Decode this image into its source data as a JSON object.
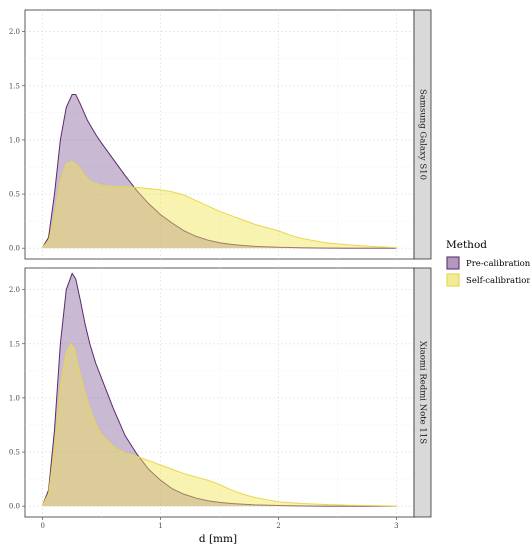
{
  "chart_data": {
    "type": "area",
    "xlabel": "d [mm]",
    "xlim": [
      -0.15,
      3.15
    ],
    "ylim": [
      -0.1,
      2.2
    ],
    "x_ticks": [
      0,
      1,
      2,
      3
    ],
    "y_ticks": [
      0.0,
      0.5,
      1.0,
      1.5,
      2.0
    ],
    "x_tick_labels": [
      "0",
      "1",
      "2",
      "3"
    ],
    "y_tick_labels": [
      "0.0",
      "0.5",
      "1.0",
      "1.5",
      "2.0"
    ],
    "grid": true,
    "legend": {
      "title": "Method",
      "placement": "right",
      "entries": [
        "Pre-calibration",
        "Self-calibration"
      ]
    },
    "series_styles": [
      {
        "name": "Pre-calibration",
        "fill": "#7b4f8f",
        "fill_opacity": 0.4,
        "stroke": "#5b2a6e"
      },
      {
        "name": "Self-calibration",
        "fill": "#f1e455",
        "fill_opacity": 0.45,
        "stroke": "#e8d84a"
      }
    ],
    "strip_color": "#d9d9d9",
    "panels": [
      {
        "label": "Samsung Galaxy S10",
        "series": [
          {
            "name": "Pre-calibration",
            "x": [
              0,
              0.05,
              0.1,
              0.15,
              0.2,
              0.25,
              0.28,
              0.32,
              0.38,
              0.45,
              0.5,
              0.6,
              0.7,
              0.8,
              0.9,
              1.0,
              1.1,
              1.2,
              1.3,
              1.4,
              1.5,
              1.6,
              1.7,
              1.8,
              2.0,
              2.2,
              2.4,
              2.6,
              2.8,
              3.0
            ],
            "values": [
              0.01,
              0.1,
              0.5,
              1.0,
              1.3,
              1.42,
              1.42,
              1.33,
              1.18,
              1.05,
              0.97,
              0.82,
              0.67,
              0.53,
              0.41,
              0.31,
              0.23,
              0.16,
              0.11,
              0.075,
              0.05,
              0.035,
              0.025,
              0.017,
              0.008,
              0.004,
              0.002,
              0.001,
              0.0005,
              0.0002
            ]
          },
          {
            "name": "Self-calibration",
            "x": [
              0,
              0.05,
              0.1,
              0.15,
              0.2,
              0.25,
              0.3,
              0.35,
              0.4,
              0.5,
              0.6,
              0.7,
              0.8,
              0.9,
              1.0,
              1.1,
              1.2,
              1.3,
              1.4,
              1.5,
              1.6,
              1.7,
              1.8,
              1.9,
              2.0,
              2.1,
              2.2,
              2.3,
              2.4,
              2.5,
              2.6,
              2.8,
              3.0
            ],
            "values": [
              0.01,
              0.07,
              0.3,
              0.62,
              0.78,
              0.8,
              0.76,
              0.68,
              0.62,
              0.58,
              0.57,
              0.565,
              0.56,
              0.55,
              0.54,
              0.52,
              0.49,
              0.44,
              0.39,
              0.34,
              0.3,
              0.26,
              0.22,
              0.19,
              0.16,
              0.12,
              0.09,
              0.07,
              0.05,
              0.04,
              0.03,
              0.015,
              0.005
            ]
          }
        ]
      },
      {
        "label": "Xiaomi Redmi Note 11S",
        "series": [
          {
            "name": "Pre-calibration",
            "x": [
              0,
              0.05,
              0.1,
              0.15,
              0.2,
              0.25,
              0.28,
              0.32,
              0.36,
              0.4,
              0.45,
              0.5,
              0.55,
              0.6,
              0.7,
              0.8,
              0.9,
              1.0,
              1.1,
              1.2,
              1.3,
              1.4,
              1.5,
              1.6,
              1.8,
              2.0,
              2.2,
              2.4,
              2.6,
              3.0
            ],
            "values": [
              0.01,
              0.15,
              0.7,
              1.5,
              2.0,
              2.15,
              2.1,
              1.9,
              1.68,
              1.5,
              1.32,
              1.18,
              1.04,
              0.9,
              0.65,
              0.48,
              0.34,
              0.24,
              0.16,
              0.11,
              0.075,
              0.05,
              0.035,
              0.025,
              0.012,
              0.006,
              0.003,
              0.001,
              0.0005,
              0.0001
            ]
          },
          {
            "name": "Self-calibration",
            "x": [
              0,
              0.05,
              0.1,
              0.15,
              0.2,
              0.24,
              0.27,
              0.3,
              0.35,
              0.4,
              0.45,
              0.5,
              0.6,
              0.7,
              0.8,
              0.9,
              1.0,
              1.1,
              1.2,
              1.3,
              1.4,
              1.5,
              1.6,
              1.7,
              1.8,
              1.9,
              2.0,
              2.2,
              2.4,
              2.6,
              3.0
            ],
            "values": [
              0.01,
              0.12,
              0.55,
              1.1,
              1.42,
              1.5,
              1.45,
              1.3,
              1.08,
              0.9,
              0.76,
              0.66,
              0.55,
              0.49,
              0.46,
              0.42,
              0.38,
              0.34,
              0.3,
              0.27,
              0.24,
              0.2,
              0.15,
              0.11,
              0.08,
              0.06,
              0.04,
              0.025,
              0.015,
              0.008,
              0.002
            ]
          }
        ]
      }
    ]
  }
}
